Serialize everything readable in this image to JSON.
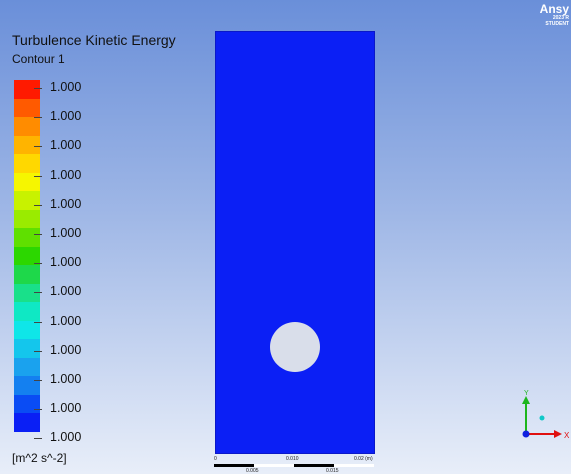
{
  "logo": {
    "brand": "Ansy",
    "year": "2023 R",
    "edition": "STUDENT"
  },
  "legend": {
    "title": "Turbulence Kinetic Energy",
    "subtitle": "Contour 1",
    "units": "[m^2 s^-2]",
    "tick_labels": [
      "1.000",
      "1.000",
      "1.000",
      "1.000",
      "1.000",
      "1.000",
      "1.000",
      "1.000",
      "1.000",
      "1.000",
      "1.000",
      "1.000",
      "1.000"
    ],
    "colors": [
      "#ff1a00",
      "#ff5a00",
      "#ff8c00",
      "#ffb400",
      "#ffd800",
      "#f6f600",
      "#c8f200",
      "#9aeb00",
      "#5fe000",
      "#2cd700",
      "#1ed84a",
      "#19e08a",
      "#0fe8c4",
      "#0fe6e8",
      "#14c6ec",
      "#1aa2ee",
      "#1480f0",
      "#0a4cf4",
      "#0a1ff5"
    ]
  },
  "contour": {
    "fill_color": "#0b1ff5",
    "hole_color": "#d9deea"
  },
  "scale_bar": {
    "label_0": "0",
    "label_mid": "0.010",
    "label_end": "0.02 (m)",
    "label_q1": "0.005",
    "label_q3": "0.015"
  },
  "axis_triad": {
    "x_label": "X",
    "y_label": "Y"
  }
}
